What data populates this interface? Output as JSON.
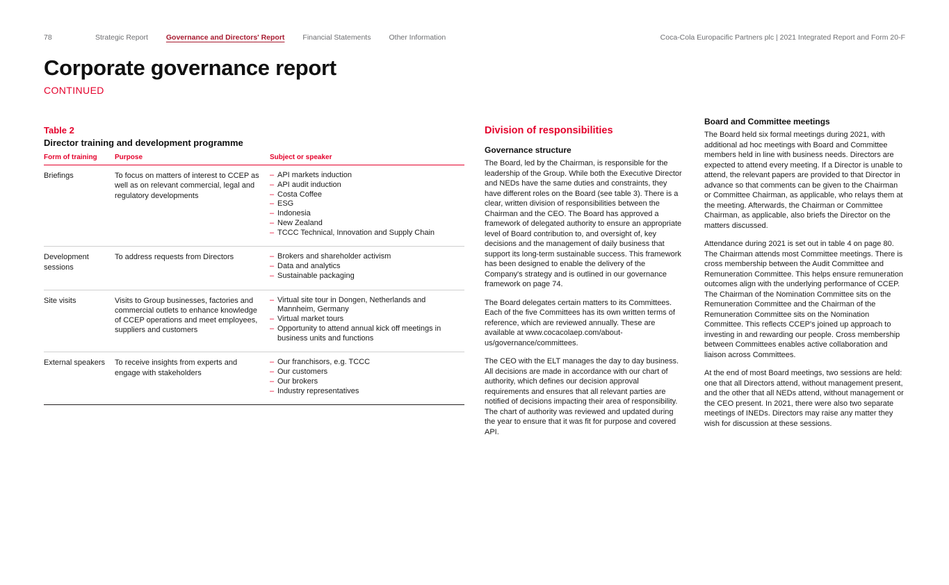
{
  "page": {
    "number": "78",
    "brand_line": "Coca-Cola Europacific Partners plc | 2021 Integrated Report and Form 20-F"
  },
  "nav": {
    "items": [
      {
        "label": "Strategic Report"
      },
      {
        "label": "Governance and Directors' Report"
      },
      {
        "label": "Financial Statements"
      },
      {
        "label": "Other Information"
      }
    ],
    "active_index": 1
  },
  "title": {
    "main": "Corporate governance report",
    "continued": "CONTINUED"
  },
  "table2": {
    "label": "Table 2",
    "caption": "Director training and development programme",
    "columns": [
      "Form of training",
      "Purpose",
      "Subject or speaker"
    ],
    "rows": [
      {
        "form": "Briefings",
        "purpose": "To focus on matters of interest to CCEP as well as on relevant commercial, legal and regulatory developments",
        "subjects": [
          "API markets induction",
          "API audit induction",
          "Costa Coffee",
          "ESG",
          "Indonesia",
          "New Zealand",
          "TCCC Technical, Innovation and Supply Chain"
        ]
      },
      {
        "form": "Development sessions",
        "purpose": "To address requests from Directors",
        "subjects": [
          "Brokers and shareholder activism",
          "Data and analytics",
          "Sustainable packaging"
        ]
      },
      {
        "form": "Site visits",
        "purpose": "Visits to Group businesses, factories and commercial outlets to enhance knowledge of CCEP operations and meet employees, suppliers and customers",
        "subjects": [
          "Virtual site tour in Dongen, Netherlands and Mannheim, Germany",
          "Virtual market tours",
          "Opportunity to attend annual kick off meetings in business units and functions"
        ]
      },
      {
        "form": "External speakers",
        "purpose": "To receive insights from experts and engage with stakeholders",
        "subjects": [
          "Our franchisors, e.g. TCCC",
          "Our customers",
          "Our brokers",
          "Industry representatives"
        ]
      }
    ]
  },
  "division": {
    "heading": "Division of responsibilities",
    "subheading": "Governance structure",
    "paragraphs": [
      "The Board, led by the Chairman, is responsible for the leadership of the Group. While both the Executive Director and NEDs have the same duties and constraints, they have different roles on the Board (see table 3). There is a clear, written division of responsibilities between the Chairman and the CEO. The Board has approved a framework of delegated authority to ensure an appropriate level of Board contribution to, and oversight of, key decisions and the management of daily business that support its long-term sustainable success. This framework has been designed to enable the delivery of the Company's strategy and is outlined in our governance framework on page 74.",
      "The Board delegates certain matters to its Committees. Each of the five Committees has its own written terms of reference, which are reviewed annually. These are available at www.cocacolaep.com/about-us/governance/committees.",
      "The CEO with the ELT manages the day to day business. All decisions are made in accordance with our chart of authority, which defines our decision approval requirements and ensures that all relevant parties are notified of decisions impacting their area of responsibility. The chart of authority was reviewed and updated during the year to ensure that it was fit for purpose and covered API."
    ]
  },
  "board": {
    "heading": "Board and Committee meetings",
    "paragraphs": [
      "The Board held six formal meetings during 2021, with additional ad hoc meetings with Board and Committee members held in line with business needs. Directors are expected to attend every meeting. If a Director is unable to attend, the relevant papers are provided to that Director in advance so that comments can be given to the Chairman or Committee Chairman, as applicable, who relays them at the meeting. Afterwards, the Chairman or Committee Chairman, as applicable, also briefs the Director on the matters discussed.",
      "Attendance during 2021 is set out in table 4 on page 80. The Chairman attends most Committee meetings. There is cross membership between the Audit Committee and Remuneration Committee. This helps ensure remuneration outcomes align with the underlying performance of CCEP. The Chairman of the Nomination Committee sits on the Remuneration Committee and the Chairman of the Remuneration Committee sits on the Nomination Committee. This reflects CCEP's joined up approach to investing in and rewarding our people. Cross membership between Committees enables active collaboration and liaison across Committees.",
      "At the end of most Board meetings, two sessions are held: one that all Directors attend, without management present, and the other that all NEDs attend, without management or the CEO present. In 2021, there were also two separate meetings of INEDs. Directors may raise any matter they wish for discussion at these sessions."
    ]
  },
  "colors": {
    "accent_red": "#e4002b",
    "nav_active_red": "#a6192e",
    "muted_gray": "#6d6e71"
  }
}
